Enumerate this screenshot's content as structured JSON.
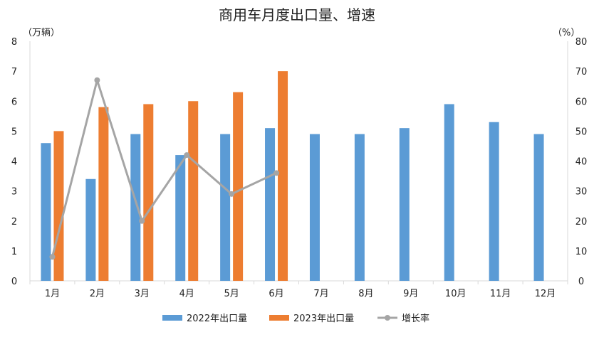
{
  "chart_data": {
    "type": "bar",
    "title": "商用车月度出口量、增速",
    "categories": [
      "1月",
      "2月",
      "3月",
      "4月",
      "5月",
      "6月",
      "7月",
      "8月",
      "9月",
      "10月",
      "11月",
      "12月"
    ],
    "series": [
      {
        "name": "2022年出口量",
        "type": "bar",
        "axis": "left",
        "color": "#5B9BD5",
        "values": [
          4.6,
          3.4,
          4.9,
          4.2,
          4.9,
          5.1,
          4.9,
          4.9,
          5.1,
          5.9,
          5.3,
          4.9
        ]
      },
      {
        "name": "2023年出口量",
        "type": "bar",
        "axis": "left",
        "color": "#ED7D31",
        "values": [
          5.0,
          5.8,
          5.9,
          6.0,
          6.3,
          7.0,
          null,
          null,
          null,
          null,
          null,
          null
        ]
      },
      {
        "name": "增长率",
        "type": "line",
        "axis": "right",
        "color": "#A5A5A5",
        "values": [
          8,
          67,
          20,
          42,
          29,
          36,
          null,
          null,
          null,
          null,
          null,
          null
        ]
      }
    ],
    "y_left": {
      "unit": "（万辆）",
      "ylim": [
        0,
        8
      ],
      "ticks": [
        0,
        1,
        2,
        3,
        4,
        5,
        6,
        7,
        8
      ]
    },
    "y_right": {
      "unit": "（%）",
      "ylim": [
        0,
        80
      ],
      "ticks": [
        0,
        10,
        20,
        30,
        40,
        50,
        60,
        70,
        80
      ]
    },
    "grid": false,
    "legend_position": "bottom"
  }
}
